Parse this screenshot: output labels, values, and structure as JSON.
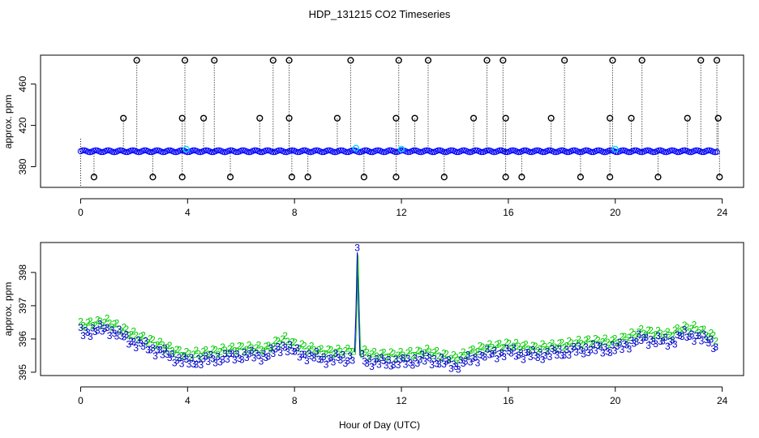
{
  "figure": {
    "title": "HDP_131215  CO2 Timeseries",
    "xlabel": "Hour of Day (UTC)"
  },
  "colors": {
    "scatter_black": "#000000",
    "baseline_blue": "#0000ff",
    "highlight_cyan": "#00d8ff",
    "series_2": "#00cc00",
    "series_3": "#0000cc"
  },
  "chart_data": [
    {
      "type": "scatter",
      "panel": "top",
      "ylabel": "approx. ppm",
      "xlim": [
        -1.5,
        24.8
      ],
      "ylim": [
        360,
        488
      ],
      "xticks": [
        0,
        4,
        8,
        12,
        16,
        20,
        24
      ],
      "yticks": [
        380,
        420,
        460
      ],
      "baseline": 395,
      "spikes_high": [
        2.1,
        3.9,
        5.0,
        7.2,
        7.8,
        10.1,
        11.9,
        13.0,
        15.2,
        15.8,
        18.1,
        19.9,
        21.0,
        23.2,
        23.8
      ],
      "spikes_mid": [
        1.6,
        3.8,
        4.6,
        6.7,
        7.8,
        9.6,
        11.8,
        12.5,
        14.7,
        15.9,
        17.6,
        19.8,
        20.6,
        22.7,
        23.85
      ],
      "spikes_low": [
        0.5,
        2.7,
        3.8,
        5.6,
        7.9,
        8.5,
        10.6,
        11.8,
        13.6,
        15.9,
        16.5,
        18.7,
        19.8,
        21.6,
        23.9
      ],
      "high_value": 483,
      "mid_value": 427,
      "low_value": 370,
      "cyan_points": [
        [
          3.95,
          397
        ],
        [
          10.3,
          398
        ],
        [
          12.0,
          397
        ],
        [
          20.0,
          397
        ]
      ]
    },
    {
      "type": "scatter",
      "panel": "bottom",
      "ylabel": "approx. ppm",
      "xlim": [
        -1.5,
        24.8
      ],
      "ylim": [
        394.9,
        398.9
      ],
      "xticks": [
        0,
        4,
        8,
        12,
        16,
        20,
        24
      ],
      "yticks": [
        395,
        396,
        397,
        398
      ],
      "series": [
        {
          "name": "2",
          "color": "#00cc00",
          "offset": 0.22
        },
        {
          "name": "3",
          "color": "#0000cc",
          "offset": 0.0
        }
      ],
      "profile_hours": [
        0,
        1,
        2,
        3,
        3.6,
        4,
        5,
        6,
        7,
        7.6,
        8,
        9,
        10,
        10.2,
        10.35,
        10.5,
        11,
        12,
        13,
        14,
        15,
        16,
        17,
        18,
        19,
        20,
        21,
        22,
        22.5,
        23,
        23.8
      ],
      "profile_values": [
        396.2,
        396.3,
        395.9,
        395.6,
        395.4,
        395.3,
        395.4,
        395.5,
        395.5,
        395.8,
        395.6,
        395.4,
        395.4,
        395.5,
        398.6,
        395.4,
        395.3,
        395.3,
        395.4,
        395.2,
        395.5,
        395.6,
        395.5,
        395.6,
        395.7,
        395.7,
        396.0,
        395.9,
        396.1,
        396.1,
        395.8
      ],
      "spike_label": "3"
    }
  ]
}
